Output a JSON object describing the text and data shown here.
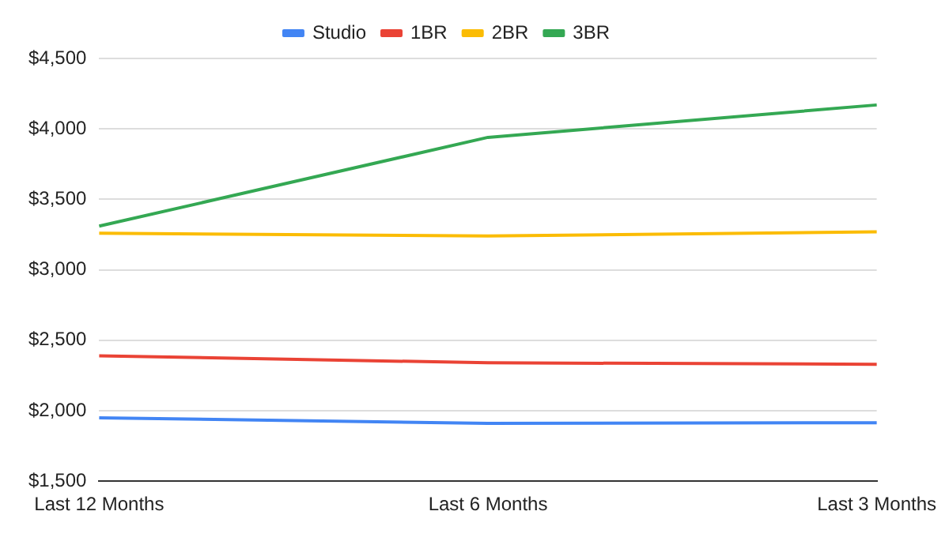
{
  "chart_data": {
    "type": "line",
    "categories": [
      "Last 12 Months",
      "Last 6 Months",
      "Last 3 Months"
    ],
    "series": [
      {
        "name": "Studio",
        "color": "#4285f4",
        "values": [
          1950,
          1910,
          1915
        ]
      },
      {
        "name": "1BR",
        "color": "#ea4335",
        "values": [
          2390,
          2340,
          2330
        ]
      },
      {
        "name": "2BR",
        "color": "#fbbc04",
        "values": [
          3260,
          3240,
          3270
        ]
      },
      {
        "name": "3BR",
        "color": "#34a853",
        "values": [
          3310,
          3940,
          4170
        ]
      }
    ],
    "ylim": [
      1500,
      4500
    ],
    "yticks": [
      {
        "value": 1500,
        "label": "$1,500"
      },
      {
        "value": 2000,
        "label": "$2,000"
      },
      {
        "value": 2500,
        "label": "$2,500"
      },
      {
        "value": 3000,
        "label": "$3,000"
      },
      {
        "value": 3500,
        "label": "$3,500"
      },
      {
        "value": 4000,
        "label": "$4,000"
      },
      {
        "value": 4500,
        "label": "$4,500"
      }
    ],
    "grid": "y",
    "legend": "top",
    "marker": "none",
    "line_style": "solid"
  }
}
